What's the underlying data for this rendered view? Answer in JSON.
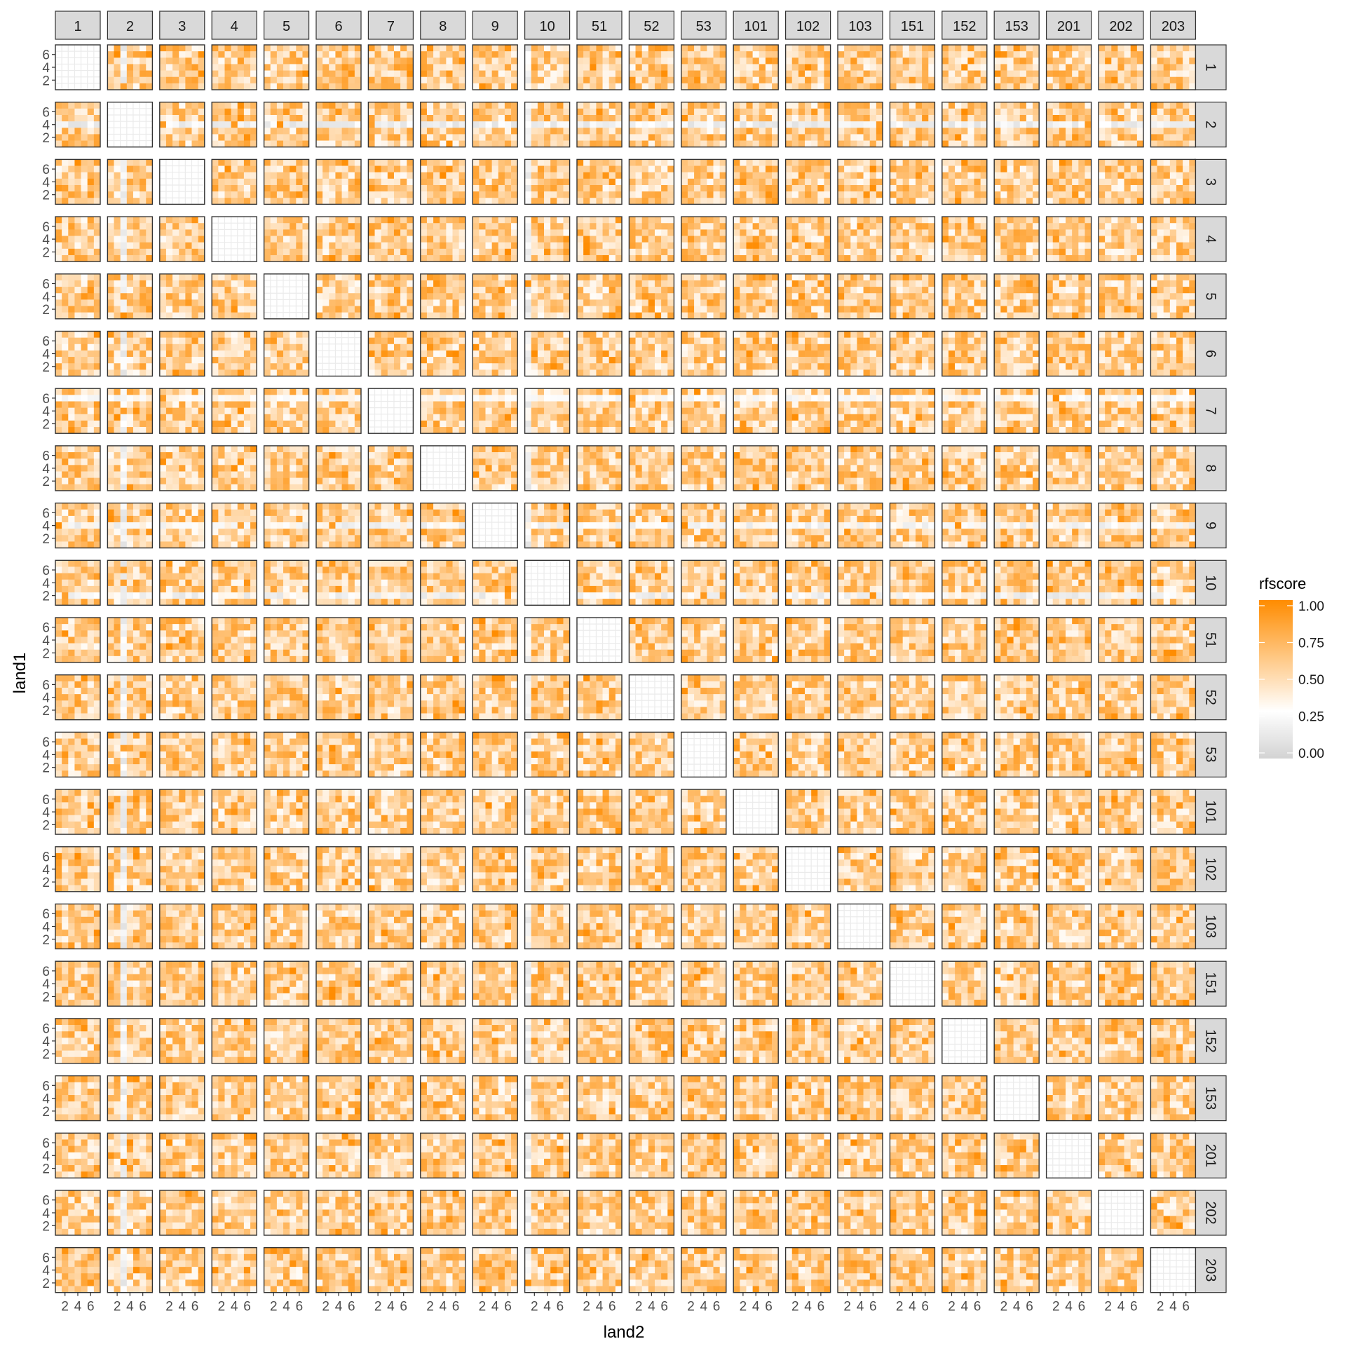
{
  "chart_data": {
    "type": "heatmap",
    "title": "",
    "facet_columns": [
      "1",
      "2",
      "3",
      "4",
      "5",
      "6",
      "7",
      "8",
      "9",
      "10",
      "51",
      "52",
      "53",
      "101",
      "102",
      "103",
      "151",
      "152",
      "153",
      "201",
      "202",
      "203"
    ],
    "facet_rows": [
      "1",
      "2",
      "3",
      "4",
      "5",
      "6",
      "7",
      "8",
      "9",
      "10",
      "51",
      "52",
      "53",
      "101",
      "102",
      "103",
      "151",
      "152",
      "153",
      "201",
      "202",
      "203"
    ],
    "xlabel": "land2",
    "ylabel": "land1",
    "x_ticks": [
      "2",
      "4",
      "6"
    ],
    "y_ticks": [
      "2",
      "4",
      "6"
    ],
    "cell_grid": [
      7,
      7
    ],
    "cell_range": [
      1,
      7
    ],
    "diagonal_panels_empty": true,
    "fill_scale": {
      "name": "rfscore",
      "min": 0.0,
      "max": 1.0,
      "breaks": [
        "0.00",
        "0.25",
        "0.50",
        "0.75",
        "1.00"
      ],
      "low_color": "#d3d3d3",
      "mid_color": "#ffffff",
      "high_color": "#ff8c00",
      "midpoint": 0.3
    },
    "legend_position": "right",
    "grid": true,
    "seed": 20241
  },
  "colors": {
    "strip_fill": "#d9d9d9",
    "strip_border": "#333333",
    "panel_border": "#333333",
    "gridline": "#ebebeb",
    "text": "#000000",
    "tick_text": "#4d4d4d"
  }
}
